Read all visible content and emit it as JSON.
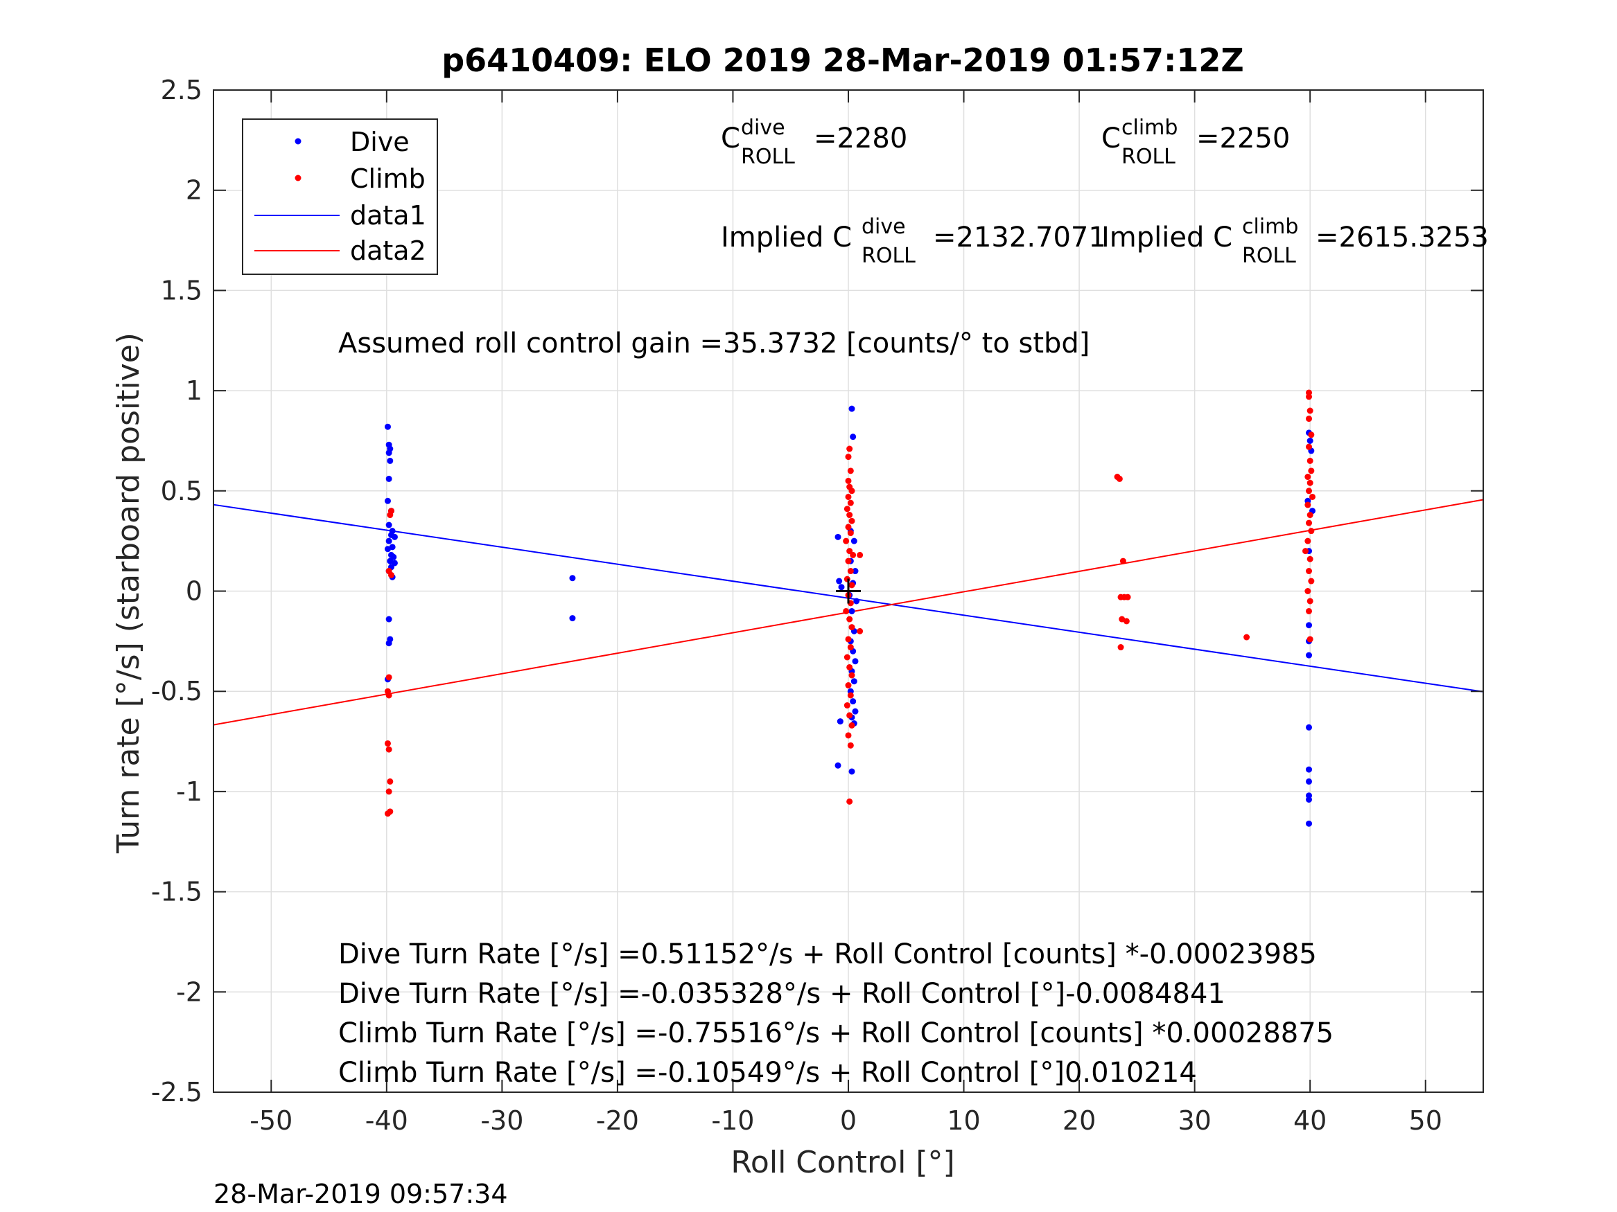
{
  "chart_data": {
    "type": "scatter",
    "title": "p6410409: ELO 2019 28-Mar-2019 01:57:12Z",
    "xlabel": "Roll Control [°]",
    "ylabel": "Turn rate [°/s] (starboard positive)",
    "xlim": [
      -55,
      55
    ],
    "ylim": [
      -2.5,
      2.5
    ],
    "xticks": [
      -50,
      -40,
      -30,
      -20,
      -10,
      0,
      10,
      20,
      30,
      40,
      50
    ],
    "yticks": [
      -2.5,
      -2,
      -1.5,
      -1,
      -0.5,
      0,
      0.5,
      1,
      1.5,
      2,
      2.5
    ],
    "xtick_labels": [
      "-50",
      "-40",
      "-30",
      "-20",
      "-10",
      "0",
      "10",
      "20",
      "30",
      "40",
      "50"
    ],
    "ytick_labels": [
      "-2.5",
      "-2",
      "-1.5",
      "-1",
      "-0.5",
      "0",
      "0.5",
      "1",
      "1.5",
      "2",
      "2.5"
    ],
    "grid": true,
    "legend_position": "top-left",
    "colors": {
      "dive": "#0000ff",
      "climb": "#ff0000",
      "center_marker": "#000000"
    },
    "series": [
      {
        "name": "Dive",
        "kind": "points",
        "color": "#0000ff",
        "points": [
          [
            -39.9,
            0.82
          ],
          [
            -39.8,
            0.73
          ],
          [
            -39.7,
            0.71
          ],
          [
            -39.8,
            0.69
          ],
          [
            -39.7,
            0.65
          ],
          [
            -39.8,
            0.56
          ],
          [
            -39.9,
            0.45
          ],
          [
            -39.6,
            0.4
          ],
          [
            -39.8,
            0.33
          ],
          [
            -39.5,
            0.3
          ],
          [
            -39.6,
            0.28
          ],
          [
            -39.3,
            0.27
          ],
          [
            -39.8,
            0.25
          ],
          [
            -39.5,
            0.22
          ],
          [
            -39.9,
            0.21
          ],
          [
            -39.6,
            0.18
          ],
          [
            -39.4,
            0.17
          ],
          [
            -39.7,
            0.15
          ],
          [
            -39.3,
            0.14
          ],
          [
            -39.6,
            0.12
          ],
          [
            -39.8,
            0.1
          ],
          [
            -39.5,
            0.07
          ],
          [
            -39.8,
            -0.14
          ],
          [
            -39.7,
            -0.24
          ],
          [
            -39.8,
            -0.26
          ],
          [
            -39.9,
            -0.44
          ],
          [
            -23.9,
            0.065
          ],
          [
            -23.9,
            -0.135
          ],
          [
            -0.9,
            0.27
          ],
          [
            -0.8,
            0.05
          ],
          [
            -0.6,
            0.02
          ],
          [
            0.3,
            0.91
          ],
          [
            0.4,
            0.77
          ],
          [
            0.2,
            0.3
          ],
          [
            0.5,
            0.25
          ],
          [
            0.2,
            0.15
          ],
          [
            0.6,
            0.1
          ],
          [
            0.4,
            0.04
          ],
          [
            0.1,
            -0.02
          ],
          [
            0.7,
            -0.05
          ],
          [
            0.3,
            -0.1
          ],
          [
            0.5,
            -0.2
          ],
          [
            0.2,
            -0.25
          ],
          [
            0.4,
            -0.3
          ],
          [
            0.6,
            -0.35
          ],
          [
            0.3,
            -0.4
          ],
          [
            0.5,
            -0.45
          ],
          [
            0.2,
            -0.5
          ],
          [
            0.4,
            -0.55
          ],
          [
            0.6,
            -0.6
          ],
          [
            0.3,
            -0.63
          ],
          [
            0.5,
            -0.66
          ],
          [
            -0.7,
            -0.65
          ],
          [
            -0.9,
            -0.87
          ],
          [
            0.3,
            -0.9
          ],
          [
            39.9,
            0.79
          ],
          [
            40.0,
            0.75
          ],
          [
            40.1,
            0.7
          ],
          [
            39.8,
            0.45
          ],
          [
            40.2,
            0.4
          ],
          [
            39.9,
            0.2
          ],
          [
            39.9,
            -0.17
          ],
          [
            39.9,
            -0.25
          ],
          [
            39.9,
            -0.32
          ],
          [
            39.9,
            -0.68
          ],
          [
            39.9,
            -0.89
          ],
          [
            39.9,
            -0.95
          ],
          [
            39.9,
            -1.02
          ],
          [
            39.9,
            -1.04
          ],
          [
            39.9,
            -1.16
          ]
        ]
      },
      {
        "name": "Climb",
        "kind": "points",
        "color": "#ff0000",
        "points": [
          [
            -39.6,
            0.4
          ],
          [
            -39.7,
            0.38
          ],
          [
            -39.8,
            0.1
          ],
          [
            -39.6,
            0.08
          ],
          [
            -39.8,
            -0.43
          ],
          [
            -39.9,
            -0.5
          ],
          [
            -39.8,
            -0.52
          ],
          [
            -39.9,
            -0.76
          ],
          [
            -39.8,
            -0.79
          ],
          [
            -39.7,
            -0.95
          ],
          [
            -39.8,
            -1.0
          ],
          [
            -39.7,
            -1.1
          ],
          [
            -39.9,
            -1.11
          ],
          [
            0.1,
            0.71
          ],
          [
            0.0,
            0.67
          ],
          [
            0.2,
            0.6
          ],
          [
            0.0,
            0.55
          ],
          [
            0.1,
            0.52
          ],
          [
            0.3,
            0.5
          ],
          [
            0.0,
            0.47
          ],
          [
            0.2,
            0.44
          ],
          [
            -0.1,
            0.41
          ],
          [
            0.1,
            0.38
          ],
          [
            0.3,
            0.35
          ],
          [
            0.0,
            0.32
          ],
          [
            0.2,
            0.29
          ],
          [
            -0.2,
            0.25
          ],
          [
            0.1,
            0.2
          ],
          [
            0.4,
            0.18
          ],
          [
            1.0,
            0.18
          ],
          [
            0.0,
            0.15
          ],
          [
            0.2,
            0.1
          ],
          [
            -0.1,
            0.06
          ],
          [
            0.3,
            0.03
          ],
          [
            0.0,
            -0.02
          ],
          [
            0.2,
            -0.06
          ],
          [
            -0.2,
            -0.1
          ],
          [
            0.1,
            -0.14
          ],
          [
            0.3,
            -0.18
          ],
          [
            1.0,
            -0.2
          ],
          [
            0.0,
            -0.24
          ],
          [
            0.2,
            -0.28
          ],
          [
            -0.1,
            -0.33
          ],
          [
            0.1,
            -0.38
          ],
          [
            0.3,
            -0.42
          ],
          [
            0.0,
            -0.47
          ],
          [
            0.2,
            -0.52
          ],
          [
            -0.1,
            -0.57
          ],
          [
            0.1,
            -0.62
          ],
          [
            0.3,
            -0.67
          ],
          [
            0.0,
            -0.72
          ],
          [
            0.2,
            -0.77
          ],
          [
            0.1,
            -1.05
          ],
          [
            23.3,
            0.57
          ],
          [
            23.5,
            0.56
          ],
          [
            23.8,
            0.15
          ],
          [
            23.6,
            -0.03
          ],
          [
            23.9,
            -0.03
          ],
          [
            24.2,
            -0.03
          ],
          [
            23.7,
            -0.14
          ],
          [
            24.1,
            -0.15
          ],
          [
            23.6,
            -0.28
          ],
          [
            34.5,
            -0.23
          ],
          [
            39.9,
            0.99
          ],
          [
            39.9,
            0.97
          ],
          [
            40.0,
            0.9
          ],
          [
            39.9,
            0.86
          ],
          [
            40.1,
            0.78
          ],
          [
            39.9,
            0.72
          ],
          [
            40.0,
            0.65
          ],
          [
            40.1,
            0.6
          ],
          [
            39.8,
            0.57
          ],
          [
            40.0,
            0.54
          ],
          [
            39.9,
            0.5
          ],
          [
            40.2,
            0.47
          ],
          [
            39.8,
            0.43
          ],
          [
            40.0,
            0.38
          ],
          [
            39.9,
            0.34
          ],
          [
            40.1,
            0.3
          ],
          [
            39.8,
            0.25
          ],
          [
            39.6,
            0.2
          ],
          [
            40.0,
            0.16
          ],
          [
            39.9,
            0.1
          ],
          [
            40.1,
            0.05
          ],
          [
            39.8,
            0.0
          ],
          [
            40.0,
            -0.05
          ],
          [
            39.9,
            -0.1
          ],
          [
            40.0,
            -0.24
          ]
        ]
      },
      {
        "name": "data1",
        "kind": "line",
        "color": "#0000ff",
        "points": [
          [
            -55,
            0.4313
          ],
          [
            55,
            -0.502
          ]
        ]
      },
      {
        "name": "data2",
        "kind": "line",
        "color": "#ff0000",
        "points": [
          [
            -55,
            -0.6673
          ],
          [
            55,
            0.4562
          ]
        ]
      }
    ],
    "center_marker": {
      "x": 0,
      "y": 0,
      "shape": "plus"
    },
    "annotations": {
      "c_dive": {
        "main": "C",
        "sup": "dive",
        "sub": "ROLL",
        "value": "=2280"
      },
      "c_climb": {
        "main": "C",
        "sup": "climb",
        "sub": "ROLL",
        "value": "=2250"
      },
      "implied_dive": {
        "main": "Implied C",
        "sup": "dive",
        "sub": "ROLL",
        "value": "=2132.7071"
      },
      "implied_climb": {
        "main": "Implied C",
        "sup": "climb",
        "sub": "ROLL",
        "value": "=2615.3253"
      },
      "gain": "Assumed roll control gain =35.3732 [counts/° to stbd]",
      "fits": [
        "Dive Turn Rate [°/s] =0.51152°/s + Roll Control [counts] *-0.00023985",
        "Dive Turn Rate [°/s] =-0.035328°/s + Roll Control [°]-0.0084841",
        "Climb Turn Rate [°/s] =-0.75516°/s + Roll Control [counts] *0.00028875",
        "Climb Turn Rate [°/s] =-0.10549°/s + Roll Control [°]0.010214"
      ]
    }
  },
  "timestamp": "28-Mar-2019 09:57:34"
}
